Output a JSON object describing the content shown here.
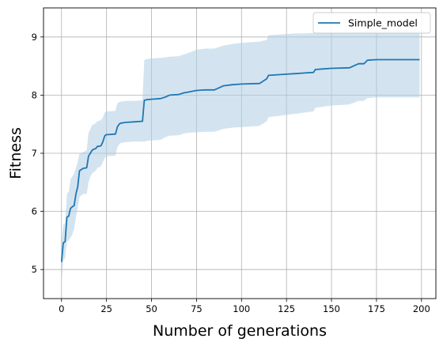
{
  "chart_data": {
    "type": "line",
    "xlabel": "Number of generations",
    "ylabel": "Fitness",
    "xlim": [
      -10,
      208
    ],
    "ylim": [
      4.5,
      9.5
    ],
    "xticks": [
      0,
      25,
      50,
      75,
      100,
      125,
      150,
      175,
      200
    ],
    "yticks": [
      5,
      6,
      7,
      8,
      9
    ],
    "grid": true,
    "legend_position": "top-right",
    "colors": {
      "line": "#1f77b4",
      "band": "#aecde3"
    },
    "series": [
      {
        "name": "Simple_model",
        "x": [
          0,
          1,
          2,
          3,
          4,
          5,
          6,
          7,
          8,
          9,
          10,
          12,
          14,
          15,
          16,
          17,
          18,
          19,
          20,
          21,
          22,
          23,
          24,
          25,
          26,
          30,
          31,
          32,
          33,
          34,
          35,
          40,
          45,
          46,
          47,
          50,
          55,
          58,
          60,
          65,
          68,
          70,
          75,
          80,
          85,
          90,
          95,
          100,
          110,
          114,
          115,
          120,
          125,
          130,
          135,
          140,
          141,
          145,
          150,
          160,
          165,
          168,
          170,
          175,
          180,
          190,
          199
        ],
        "y": [
          5.13,
          5.46,
          5.48,
          5.9,
          5.92,
          6.05,
          6.08,
          6.1,
          6.3,
          6.42,
          6.7,
          6.74,
          6.75,
          6.95,
          7.0,
          7.05,
          7.07,
          7.08,
          7.12,
          7.12,
          7.13,
          7.2,
          7.3,
          7.32,
          7.32,
          7.33,
          7.45,
          7.5,
          7.52,
          7.52,
          7.53,
          7.54,
          7.55,
          7.91,
          7.92,
          7.93,
          7.94,
          7.97,
          8.0,
          8.01,
          8.04,
          8.05,
          8.08,
          8.09,
          8.09,
          8.16,
          8.18,
          8.19,
          8.2,
          8.28,
          8.34,
          8.35,
          8.36,
          8.37,
          8.38,
          8.39,
          8.44,
          8.45,
          8.46,
          8.47,
          8.54,
          8.54,
          8.6,
          8.61,
          8.61,
          8.61,
          8.61
        ],
        "lower": [
          4.78,
          5.15,
          5.2,
          5.48,
          5.5,
          5.55,
          5.6,
          5.7,
          5.9,
          6.05,
          6.25,
          6.3,
          6.3,
          6.5,
          6.6,
          6.65,
          6.68,
          6.7,
          6.75,
          6.76,
          6.78,
          6.85,
          6.92,
          6.95,
          6.95,
          6.96,
          7.1,
          7.15,
          7.18,
          7.18,
          7.19,
          7.2,
          7.2,
          7.2,
          7.21,
          7.22,
          7.23,
          7.28,
          7.3,
          7.31,
          7.34,
          7.35,
          7.36,
          7.37,
          7.37,
          7.42,
          7.44,
          7.45,
          7.47,
          7.55,
          7.62,
          7.64,
          7.66,
          7.68,
          7.7,
          7.72,
          7.78,
          7.8,
          7.82,
          7.84,
          7.9,
          7.9,
          7.95,
          7.96,
          7.96,
          7.96,
          7.96
        ],
        "upper": [
          5.48,
          5.77,
          5.8,
          6.3,
          6.34,
          6.55,
          6.6,
          6.65,
          6.75,
          6.85,
          7.0,
          7.02,
          7.05,
          7.35,
          7.42,
          7.48,
          7.5,
          7.52,
          7.55,
          7.56,
          7.57,
          7.62,
          7.7,
          7.72,
          7.72,
          7.73,
          7.86,
          7.88,
          7.89,
          7.89,
          7.9,
          7.9,
          7.91,
          8.6,
          8.62,
          8.63,
          8.64,
          8.65,
          8.66,
          8.67,
          8.7,
          8.72,
          8.78,
          8.8,
          8.8,
          8.85,
          8.88,
          8.9,
          8.92,
          8.95,
          9.03,
          9.04,
          9.05,
          9.06,
          9.06,
          9.07,
          9.08,
          9.08,
          9.08,
          9.08,
          9.1,
          9.1,
          9.12,
          9.12,
          9.12,
          9.12,
          9.12
        ]
      }
    ]
  }
}
